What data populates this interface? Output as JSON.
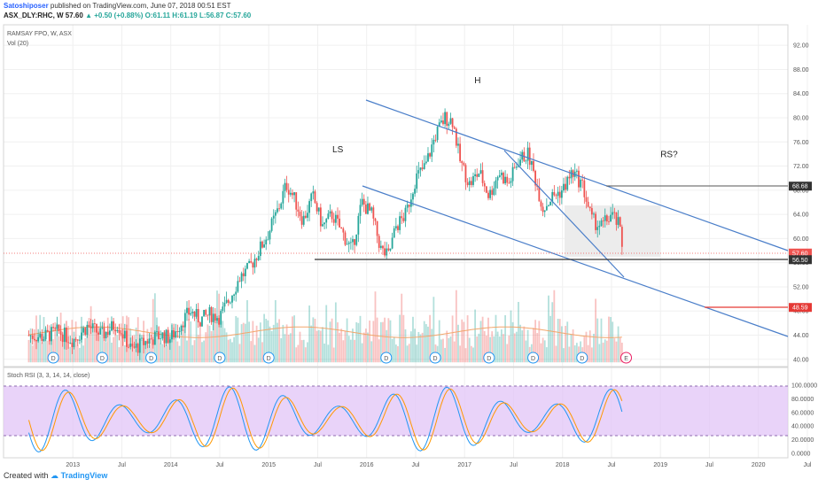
{
  "header": {
    "author": "Satoshiposer",
    "published_text": "published on TradingView.com, June 07, 2018 00:51 EST",
    "symbol": "ASX_DLY:RHC, W",
    "price": "57.60",
    "change_arrow": "▲",
    "change": "+0.50 (+0.88%)",
    "ohlc": "O:61.11 H:61.19 L:56.87 C:57.60"
  },
  "chart_data": {
    "type": "candlestick",
    "main_pane": {
      "legend": [
        "RAMSAY FPO, W, ASX",
        "Vol (20)"
      ],
      "y_ticks": [
        "92.00",
        "88.00",
        "84.00",
        "80.00",
        "76.00",
        "72.00",
        "68.00",
        "64.00",
        "60.00",
        "56.00",
        "52.00",
        "48.00",
        "44.00",
        "40.00"
      ],
      "ylim": [
        39,
        94
      ],
      "price_tags": [
        {
          "label": "68.68",
          "value": 68.68,
          "color": "#333333"
        },
        {
          "label": "57.60",
          "value": 57.6,
          "color": "#ef5350"
        },
        {
          "label": "56.50",
          "value": 56.5,
          "color": "#333333"
        },
        {
          "label": "48.59",
          "value": 48.59,
          "color": "#e53935"
        }
      ],
      "annotations": [
        {
          "text": "LS",
          "t": 2015.65,
          "v": 74.3
        },
        {
          "text": "H",
          "t": 2017.1,
          "v": 85.7
        },
        {
          "text": "RS?",
          "t": 2019.0,
          "v": 73.5
        }
      ],
      "dividend_markers": {
        "label": "D",
        "times": [
          2012.8,
          2013.3,
          2013.8,
          2014.5,
          2015.0,
          2016.2,
          2016.7,
          2017.25,
          2017.7,
          2018.2
        ],
        "earnings_label": "E",
        "earnings_time": 2018.65
      }
    },
    "candles_weekly": [
      [
        2012.55,
        44.0
      ],
      [
        2012.7,
        43.7
      ],
      [
        2012.85,
        44.6
      ],
      [
        2013.0,
        43.2
      ],
      [
        2013.15,
        45.5
      ],
      [
        2013.3,
        44.0
      ],
      [
        2013.45,
        46.0
      ],
      [
        2013.6,
        41.5
      ],
      [
        2013.75,
        43.0
      ],
      [
        2013.9,
        44.0
      ],
      [
        2014.0,
        43.5
      ],
      [
        2014.1,
        46.0
      ],
      [
        2014.2,
        48.0
      ],
      [
        2014.3,
        46.5
      ],
      [
        2014.4,
        47.5
      ],
      [
        2014.5,
        47.0
      ],
      [
        2014.6,
        50.0
      ],
      [
        2014.7,
        53.5
      ],
      [
        2014.8,
        55.0
      ],
      [
        2014.9,
        58.0
      ],
      [
        2015.0,
        61.0
      ],
      [
        2015.1,
        65.0
      ],
      [
        2015.18,
        69.0
      ],
      [
        2015.25,
        67.0
      ],
      [
        2015.35,
        63.0
      ],
      [
        2015.45,
        67.0
      ],
      [
        2015.55,
        62.0
      ],
      [
        2015.65,
        64.0
      ],
      [
        2015.75,
        61.0
      ],
      [
        2015.85,
        58.0
      ],
      [
        2015.95,
        66.0
      ],
      [
        2016.05,
        64.0
      ],
      [
        2016.15,
        58.0
      ],
      [
        2016.22,
        57.0
      ],
      [
        2016.3,
        62.0
      ],
      [
        2016.4,
        64.0
      ],
      [
        2016.5,
        70.0
      ],
      [
        2016.6,
        72.0
      ],
      [
        2016.7,
        77.0
      ],
      [
        2016.8,
        80.0
      ],
      [
        2016.88,
        79.5
      ],
      [
        2016.95,
        73.0
      ],
      [
        2017.05,
        69.0
      ],
      [
        2017.15,
        71.0
      ],
      [
        2017.25,
        67.0
      ],
      [
        2017.35,
        71.0
      ],
      [
        2017.45,
        69.0
      ],
      [
        2017.55,
        73.0
      ],
      [
        2017.65,
        74.0
      ],
      [
        2017.72,
        70.0
      ],
      [
        2017.8,
        65.0
      ],
      [
        2017.9,
        67.0
      ],
      [
        2018.0,
        68.0
      ],
      [
        2018.1,
        71.0
      ],
      [
        2018.2,
        69.0
      ],
      [
        2018.3,
        63.0
      ],
      [
        2018.4,
        62.0
      ],
      [
        2018.5,
        64.0
      ],
      [
        2018.58,
        62.0
      ],
      [
        2018.62,
        57.6
      ]
    ],
    "stoch_rsi_pane": {
      "legend": "Stoch RSI (3, 3, 14, 14, close)",
      "y_ticks": [
        "100.0000",
        "80.0000",
        "60.0000",
        "40.0000",
        "20.0000",
        "0.0000"
      ],
      "ylim": [
        -5,
        105
      ],
      "band": [
        20,
        80
      ]
    },
    "x_ticks": [
      {
        "label": "2013",
        "t": 2013.0
      },
      {
        "label": "Jul",
        "t": 2013.5
      },
      {
        "label": "2014",
        "t": 2014.0
      },
      {
        "label": "Jul",
        "t": 2014.5
      },
      {
        "label": "2015",
        "t": 2015.0
      },
      {
        "label": "Jul",
        "t": 2015.5
      },
      {
        "label": "2016",
        "t": 2016.0
      },
      {
        "label": "Jul",
        "t": 2016.5
      },
      {
        "label": "2017",
        "t": 2017.0
      },
      {
        "label": "Jul",
        "t": 2017.5
      },
      {
        "label": "2018",
        "t": 2018.0
      },
      {
        "label": "Jul",
        "t": 2018.5
      },
      {
        "label": "2019",
        "t": 2019.0
      },
      {
        "label": "Jul",
        "t": 2019.5
      },
      {
        "label": "2020",
        "t": 2020.0
      },
      {
        "label": "Jul",
        "t": 2020.5
      }
    ],
    "colors": {
      "up": "#26a69a",
      "down": "#ef5350",
      "trend": "#4a7ec9",
      "band": "#e1c4f7",
      "sma": "#f2a66b"
    }
  },
  "footer": {
    "created_with": "Created with",
    "brand": "TradingView"
  }
}
